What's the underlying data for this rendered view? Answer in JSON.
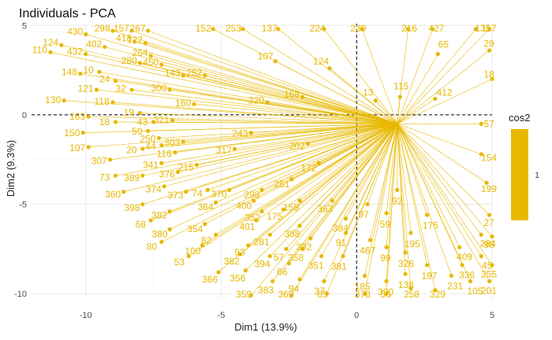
{
  "chart_data": {
    "type": "scatter",
    "title": "Individuals - PCA",
    "xlabel": "Dim1 (13.9%)",
    "ylabel": "Dim2 (9.3%)",
    "xlim": [
      -12,
      5
    ],
    "ylim": [
      -10.3,
      5.1
    ],
    "x_ticks": [
      -10,
      -5,
      0,
      5
    ],
    "y_ticks": [
      -10,
      -5,
      0,
      5
    ],
    "grid": true,
    "reference_lines": {
      "x": 0,
      "y": 0
    },
    "point_color": "#E7B800",
    "legend": {
      "title": "cos2",
      "labels": [
        "1"
      ],
      "placement": "right"
    },
    "points": [
      {
        "label": "110",
        "x": -11.3,
        "y": 3.5
      },
      {
        "label": "124",
        "x": -10.9,
        "y": 3.9
      },
      {
        "label": "430",
        "x": -10.0,
        "y": 4.5
      },
      {
        "label": "298",
        "x": -9.0,
        "y": 4.7
      },
      {
        "label": "157",
        "x": -8.3,
        "y": 4.7
      },
      {
        "label": "267",
        "x": -7.7,
        "y": 4.7
      },
      {
        "label": "402",
        "x": -9.3,
        "y": 3.8
      },
      {
        "label": "432",
        "x": -10.0,
        "y": 3.4
      },
      {
        "label": "148",
        "x": -10.2,
        "y": 2.3
      },
      {
        "label": "10",
        "x": -9.5,
        "y": 2.4
      },
      {
        "label": "280",
        "x": -8.0,
        "y": 2.9
      },
      {
        "label": "450",
        "x": -7.2,
        "y": 2.8
      },
      {
        "label": "264",
        "x": -7.6,
        "y": 3.3
      },
      {
        "label": "418",
        "x": -8.2,
        "y": 4.1
      },
      {
        "label": "24",
        "x": -8.9,
        "y": 1.9
      },
      {
        "label": "121",
        "x": -9.6,
        "y": 1.4
      },
      {
        "label": "32",
        "x": -8.3,
        "y": 1.4
      },
      {
        "label": "300",
        "x": -6.9,
        "y": 1.4
      },
      {
        "label": "143",
        "x": -6.4,
        "y": 2.2
      },
      {
        "label": "252",
        "x": -5.6,
        "y": 2.2
      },
      {
        "label": "130",
        "x": -10.8,
        "y": 0.8
      },
      {
        "label": "118",
        "x": -9.0,
        "y": 0.7
      },
      {
        "label": "163",
        "x": -9.9,
        "y": -0.1
      },
      {
        "label": "19",
        "x": -8.0,
        "y": 0.1
      },
      {
        "label": "18",
        "x": -8.9,
        "y": -0.4
      },
      {
        "label": "150",
        "x": -10.1,
        "y": -1.0
      },
      {
        "label": "50",
        "x": -7.7,
        "y": -0.9
      },
      {
        "label": "250",
        "x": -7.3,
        "y": -1.3
      },
      {
        "label": "43",
        "x": -7.5,
        "y": -0.4
      },
      {
        "label": "321",
        "x": -6.8,
        "y": -0.3
      },
      {
        "label": "160",
        "x": -6.0,
        "y": 0.6
      },
      {
        "label": "107",
        "x": -9.9,
        "y": -1.8
      },
      {
        "label": "20",
        "x": -7.9,
        "y": -1.9
      },
      {
        "label": "44",
        "x": -7.2,
        "y": -1.7
      },
      {
        "label": "303",
        "x": -6.4,
        "y": -1.5
      },
      {
        "label": "307",
        "x": -9.1,
        "y": -2.5
      },
      {
        "label": "341",
        "x": -7.2,
        "y": -2.7
      },
      {
        "label": "116",
        "x": -6.7,
        "y": -2.1
      },
      {
        "label": "73",
        "x": -8.9,
        "y": -3.4
      },
      {
        "label": "389",
        "x": -7.9,
        "y": -3.4
      },
      {
        "label": "376",
        "x": -6.6,
        "y": -3.2
      },
      {
        "label": "215",
        "x": -5.9,
        "y": -2.8
      },
      {
        "label": "360",
        "x": -8.6,
        "y": -4.3
      },
      {
        "label": "374",
        "x": -7.1,
        "y": -4.0
      },
      {
        "label": "373",
        "x": -6.3,
        "y": -4.3
      },
      {
        "label": "74",
        "x": -5.5,
        "y": -4.2
      },
      {
        "label": "398",
        "x": -7.9,
        "y": -5.0
      },
      {
        "label": "364",
        "x": -5.2,
        "y": -4.9
      },
      {
        "label": "382",
        "x": -6.9,
        "y": -5.4
      },
      {
        "label": "68",
        "x": -7.6,
        "y": -5.9
      },
      {
        "label": "354",
        "x": -5.6,
        "y": -6.1
      },
      {
        "label": "380",
        "x": -6.9,
        "y": -6.4
      },
      {
        "label": "82",
        "x": -5.2,
        "y": -6.7
      },
      {
        "label": "80",
        "x": -7.2,
        "y": -7.1
      },
      {
        "label": "100",
        "x": -5.7,
        "y": -7.3
      },
      {
        "label": "53",
        "x": -6.2,
        "y": -7.9
      },
      {
        "label": "93",
        "x": -4.0,
        "y": -7.3
      },
      {
        "label": "362",
        "x": -4.3,
        "y": -7.8
      },
      {
        "label": "394",
        "x": -3.2,
        "y": -7.9
      },
      {
        "label": "366",
        "x": -5.1,
        "y": -8.8
      },
      {
        "label": "356",
        "x": -4.1,
        "y": -8.7
      },
      {
        "label": "383",
        "x": -3.1,
        "y": -9.3
      },
      {
        "label": "359",
        "x": -3.9,
        "y": -10.1
      },
      {
        "label": "369",
        "x": -2.4,
        "y": -10.1
      },
      {
        "label": "65",
        "x": -1.1,
        "y": -10.0
      },
      {
        "label": "94",
        "x": -2.1,
        "y": -9.2
      },
      {
        "label": "37",
        "x": -1.2,
        "y": -9.3
      },
      {
        "label": "66",
        "x": -2.5,
        "y": -8.3
      },
      {
        "label": "57",
        "x": -2.6,
        "y": -7.5
      },
      {
        "label": "358",
        "x": -2.0,
        "y": -7.5
      },
      {
        "label": "351",
        "x": -1.3,
        "y": -7.9
      },
      {
        "label": "381",
        "x": -0.5,
        "y": -7.9
      },
      {
        "label": "378",
        "x": 0.3,
        "y": -10.0
      },
      {
        "label": "56",
        "x": 1.1,
        "y": -10.0
      },
      {
        "label": "390",
        "x": 1.1,
        "y": -9.3
      },
      {
        "label": "185",
        "x": 0.3,
        "y": -9.0
      },
      {
        "label": "258",
        "x": 2.0,
        "y": -9.7
      },
      {
        "label": "329",
        "x": 2.9,
        "y": -9.8
      },
      {
        "label": "138",
        "x": 1.8,
        "y": -8.9
      },
      {
        "label": "231",
        "x": 3.5,
        "y": -9.0
      },
      {
        "label": "105",
        "x": 4.2,
        "y": -9.3
      },
      {
        "label": "201",
        "x": 4.9,
        "y": -9.3
      },
      {
        "label": "197",
        "x": 2.6,
        "y": -8.4
      },
      {
        "label": "336",
        "x": 3.9,
        "y": -8.4
      },
      {
        "label": "45",
        "x": 4.6,
        "y": -7.9
      },
      {
        "label": "255",
        "x": 5.0,
        "y": -8.4
      },
      {
        "label": "409",
        "x": 3.8,
        "y": -7.4
      },
      {
        "label": "96",
        "x": 5.0,
        "y": -6.8
      },
      {
        "label": "284",
        "x": 4.6,
        "y": -6.7
      },
      {
        "label": "326",
        "x": 1.8,
        "y": -7.7
      },
      {
        "label": "99",
        "x": 1.1,
        "y": -7.4
      },
      {
        "label": "467",
        "x": 0.5,
        "y": -7.0
      },
      {
        "label": "195",
        "x": 2.0,
        "y": -6.6
      },
      {
        "label": "363",
        "x": -0.9,
        "y": -4.8
      },
      {
        "label": "159",
        "x": -2.1,
        "y": -4.8
      },
      {
        "label": "175",
        "x": -2.7,
        "y": -5.3
      },
      {
        "label": "352",
        "x": -3.5,
        "y": -5.4
      },
      {
        "label": "401",
        "x": -3.7,
        "y": -5.9
      },
      {
        "label": "400",
        "x": -3.8,
        "y": -4.8
      },
      {
        "label": "370",
        "x": -4.7,
        "y": -4.2
      },
      {
        "label": "384",
        "x": -0.4,
        "y": -5.8
      },
      {
        "label": "91",
        "x": -0.4,
        "y": -6.6
      },
      {
        "label": "388",
        "x": -2.1,
        "y": -6.2
      },
      {
        "label": "392",
        "x": -1.7,
        "y": -6.9
      },
      {
        "label": "281",
        "x": -3.2,
        "y": -6.7
      },
      {
        "label": "298",
        "x": -3.5,
        "y": -4.2
      },
      {
        "label": "59",
        "x": 1.1,
        "y": -5.5
      },
      {
        "label": "175",
        "x": 2.6,
        "y": -5.6
      },
      {
        "label": "239",
        "x": 0.2,
        "y": 4.8
      },
      {
        "label": "216",
        "x": 1.9,
        "y": 4.8
      },
      {
        "label": "427",
        "x": 2.8,
        "y": 4.8
      },
      {
        "label": "135",
        "x": 4.4,
        "y": 4.8
      },
      {
        "label": "117",
        "x": 4.9,
        "y": 4.8
      },
      {
        "label": "122",
        "x": -7.8,
        "y": 4.0
      },
      {
        "label": "253",
        "x": -4.2,
        "y": 4.8
      },
      {
        "label": "137",
        "x": -2.9,
        "y": 4.8
      },
      {
        "label": "224",
        "x": -1.2,
        "y": 4.8
      },
      {
        "label": "152",
        "x": -5.3,
        "y": 4.8
      },
      {
        "label": "107",
        "x": -3.0,
        "y": 3.0
      },
      {
        "label": "124",
        "x": -1.0,
        "y": 2.6
      },
      {
        "label": "168",
        "x": -2.0,
        "y": 1.0
      },
      {
        "label": "220",
        "x": -3.3,
        "y": 0.7
      },
      {
        "label": "202",
        "x": -1.8,
        "y": -1.6
      },
      {
        "label": "243",
        "x": -3.9,
        "y": -1.0
      },
      {
        "label": "317",
        "x": -4.5,
        "y": -1.9
      },
      {
        "label": "172",
        "x": -1.4,
        "y": -2.7
      },
      {
        "label": "281",
        "x": -2.4,
        "y": -3.6
      },
      {
        "label": "97",
        "x": 0.4,
        "y": -5.0
      },
      {
        "label": "92",
        "x": 1.5,
        "y": -4.2
      },
      {
        "label": "199",
        "x": 4.8,
        "y": -3.8
      },
      {
        "label": "27",
        "x": 4.9,
        "y": -5.6
      },
      {
        "label": "154",
        "x": 4.6,
        "y": -2.2
      },
      {
        "label": "57",
        "x": 4.6,
        "y": -0.5
      },
      {
        "label": "18",
        "x": 5.0,
        "y": 2.0
      },
      {
        "label": "29",
        "x": 4.9,
        "y": 3.6
      },
      {
        "label": "65",
        "x": 3.0,
        "y": 3.4
      },
      {
        "label": "115",
        "x": 1.6,
        "y": 1.0
      },
      {
        "label": "13",
        "x": 0.7,
        "y": 0.8
      },
      {
        "label": "412",
        "x": 2.9,
        "y": 0.9
      }
    ]
  }
}
